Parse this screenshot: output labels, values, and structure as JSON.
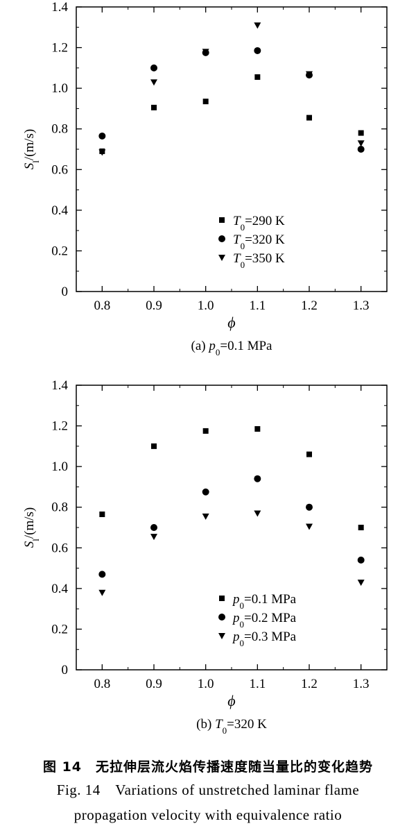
{
  "chart_data": [
    {
      "type": "scatter",
      "panel_caption_prefix": "(a) ",
      "panel_caption_var": "p",
      "panel_caption_sub": "0",
      "panel_caption_value": "=0.1 MPa",
      "xlabel": "ϕ",
      "ylabel_main": "S",
      "ylabel_sub": "l",
      "ylabel_unit": "/(m/s)",
      "xlim": [
        0.75,
        1.35
      ],
      "ylim": [
        0,
        1.4
      ],
      "xticks": [
        "0.8",
        "0.9",
        "1.0",
        "1.1",
        "1.2",
        "1.3"
      ],
      "yticks": [
        "0",
        "0.2",
        "0.4",
        "0.6",
        "0.8",
        "1.0",
        "1.2",
        "1.4"
      ],
      "x": [
        0.8,
        0.9,
        1.0,
        1.1,
        1.2,
        1.3
      ],
      "series": [
        {
          "var": "T",
          "sub": "0",
          "label_value": "=290 K",
          "marker": "square",
          "values": [
            0.69,
            0.905,
            0.935,
            1.055,
            0.855,
            0.78
          ]
        },
        {
          "var": "T",
          "sub": "0",
          "label_value": "=320 K",
          "marker": "circle",
          "values": [
            0.765,
            1.1,
            1.175,
            1.185,
            1.065,
            0.7
          ]
        },
        {
          "var": "T",
          "sub": "0",
          "label_value": "=350 K",
          "marker": "triangle-down",
          "values": [
            0.685,
            1.03,
            1.18,
            1.31,
            1.07,
            0.73
          ]
        }
      ]
    },
    {
      "type": "scatter",
      "panel_caption_prefix": "(b) ",
      "panel_caption_var": "T",
      "panel_caption_sub": "0",
      "panel_caption_value": "=320 K",
      "xlabel": "ϕ",
      "ylabel_main": "S",
      "ylabel_sub": "l",
      "ylabel_unit": "/(m/s)",
      "xlim": [
        0.75,
        1.35
      ],
      "ylim": [
        0,
        1.4
      ],
      "xticks": [
        "0.8",
        "0.9",
        "1.0",
        "1.1",
        "1.2",
        "1.3"
      ],
      "yticks": [
        "0",
        "0.2",
        "0.4",
        "0.6",
        "0.8",
        "1.0",
        "1.2",
        "1.4"
      ],
      "x": [
        0.8,
        0.9,
        1.0,
        1.1,
        1.2,
        1.3
      ],
      "series": [
        {
          "var": "p",
          "sub": "0",
          "label_value": "=0.1 MPa",
          "marker": "square",
          "values": [
            0.765,
            1.1,
            1.175,
            1.185,
            1.06,
            0.7
          ]
        },
        {
          "var": "p",
          "sub": "0",
          "label_value": "=0.2 MPa",
          "marker": "circle",
          "values": [
            0.47,
            0.7,
            0.875,
            0.94,
            0.8,
            0.54
          ]
        },
        {
          "var": "p",
          "sub": "0",
          "label_value": "=0.3 MPa",
          "marker": "triangle-down",
          "values": [
            0.38,
            0.655,
            0.755,
            0.77,
            0.705,
            0.43
          ]
        }
      ]
    }
  ],
  "figure_caption": {
    "zh": "图 14　无拉伸层流火焰传播速度随当量比的变化趋势",
    "en_line1": "Fig. 14　Variations of unstretched laminar flame",
    "en_line2": "propagation velocity with equivalence ratio"
  }
}
